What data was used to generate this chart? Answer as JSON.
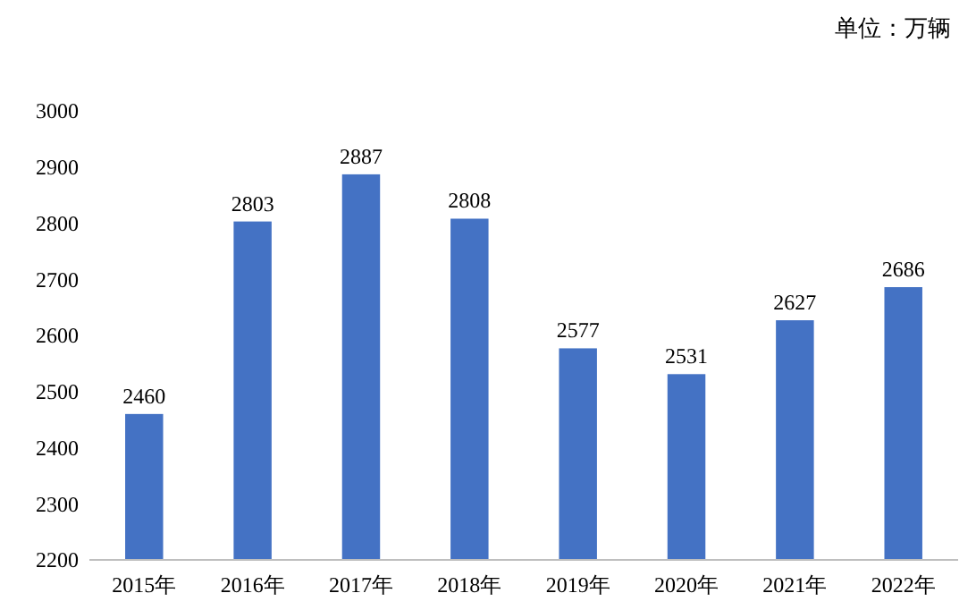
{
  "chart_data": {
    "type": "bar",
    "annotations": [
      "单位：万辆"
    ],
    "categories": [
      "2015年",
      "2016年",
      "2017年",
      "2018年",
      "2019年",
      "2020年",
      "2021年",
      "2022年"
    ],
    "values": [
      2460,
      2803,
      2887,
      2808,
      2577,
      2531,
      2627,
      2686
    ],
    "color": "#4472c4",
    "ylim": [
      2200,
      3000
    ],
    "yticks": [
      2200,
      2300,
      2400,
      2500,
      2600,
      2700,
      2800,
      2900,
      3000
    ],
    "grid": false,
    "data_labels": true
  }
}
